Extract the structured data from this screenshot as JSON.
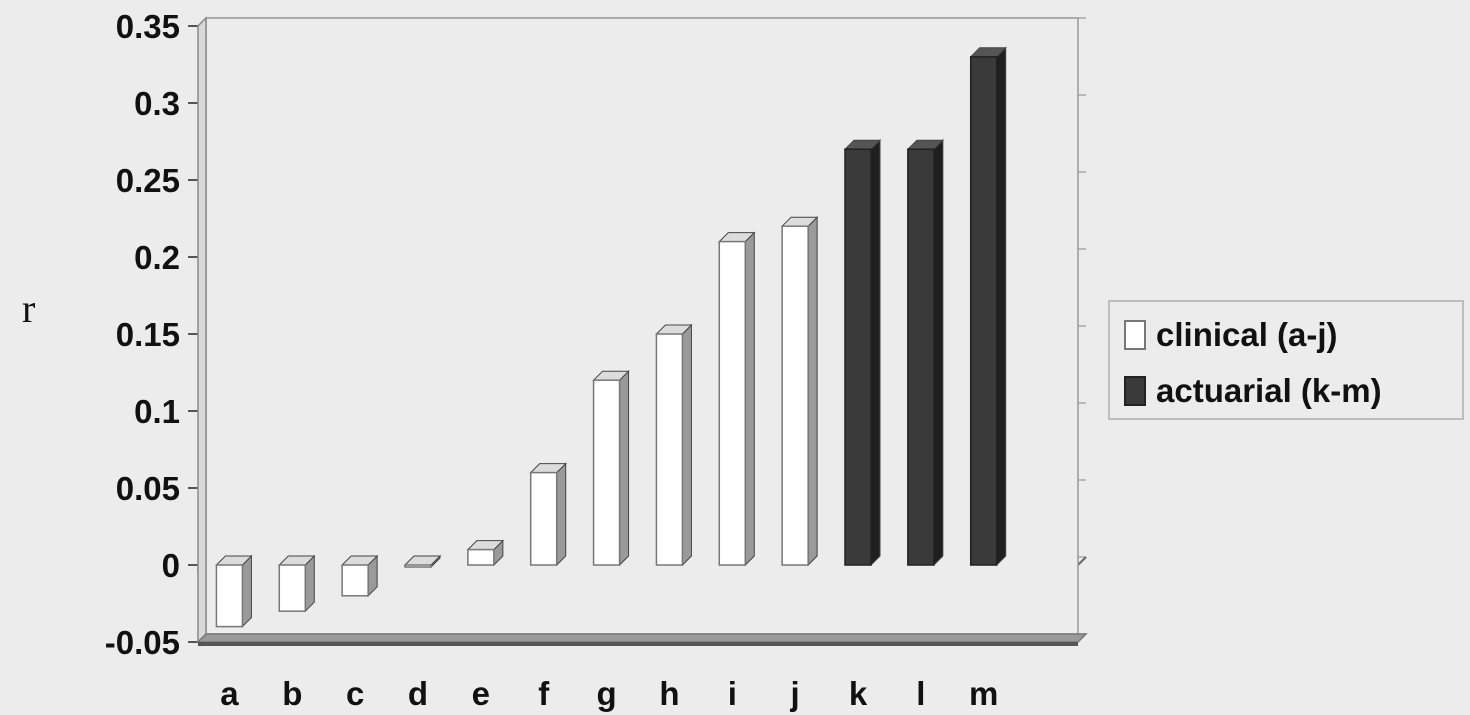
{
  "chart_data": {
    "type": "bar",
    "title": "",
    "xlabel": "",
    "ylabel": "r",
    "ylim": [
      -0.05,
      0.35
    ],
    "yticks": [
      "0.35",
      "0.3",
      "0.25",
      "0.2",
      "0.15",
      "0.1",
      "0.05",
      "0",
      "-0.05"
    ],
    "categories": [
      "a",
      "b",
      "c",
      "d",
      "e",
      "f",
      "g",
      "h",
      "i",
      "j",
      "k",
      "l",
      "m"
    ],
    "series": [
      {
        "name": "clinical (a-j)",
        "color": "#ffffff",
        "values": [
          -0.04,
          -0.03,
          -0.02,
          0,
          0.01,
          0.06,
          0.12,
          0.15,
          0.21,
          0.22,
          null,
          null,
          null
        ]
      },
      {
        "name": "actuarial (k-m)",
        "color": "#3a3a3a",
        "values": [
          null,
          null,
          null,
          null,
          null,
          null,
          null,
          null,
          null,
          null,
          0.27,
          0.27,
          0.33
        ]
      }
    ],
    "grid": true,
    "legend_position": "right"
  }
}
